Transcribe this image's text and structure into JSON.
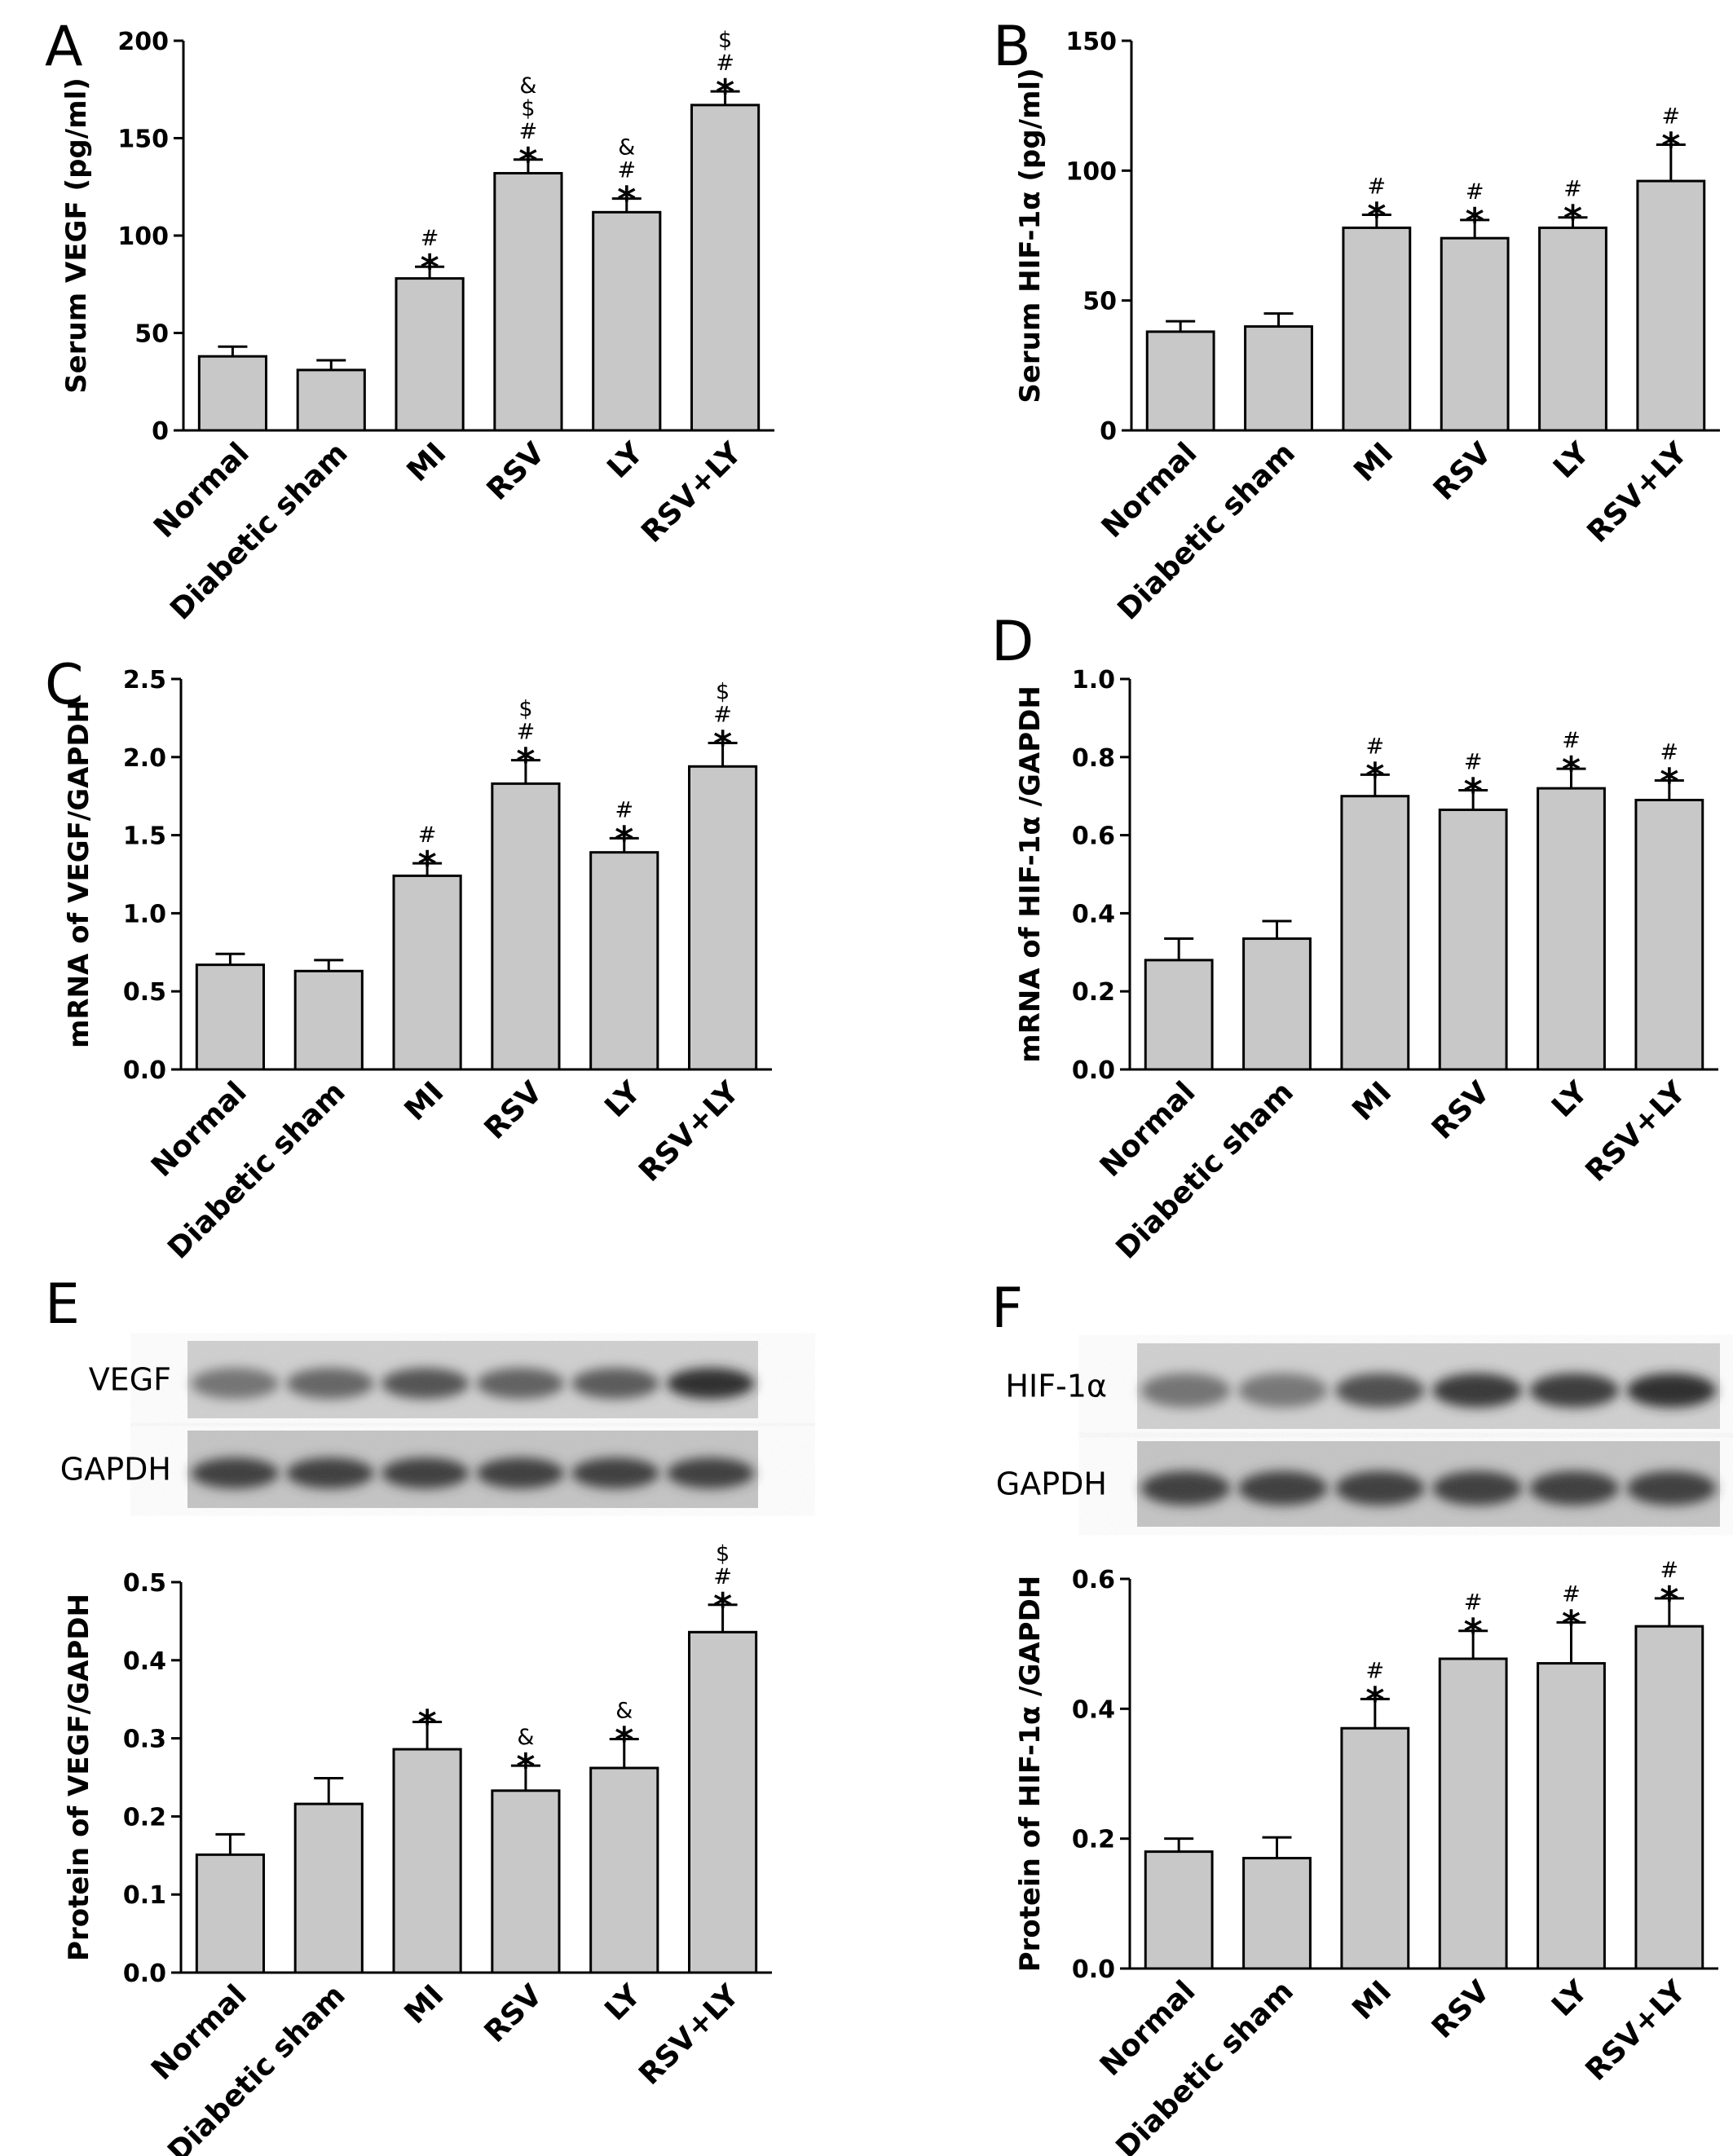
{
  "categories": [
    "Normal",
    "Diabetic sham",
    "MI",
    "RSV",
    "LY",
    "RSV+LY"
  ],
  "chart_data": [
    {
      "panel": "A",
      "type": "bar",
      "ylabel": "Serum VEGF (pg/ml)",
      "ylim": [
        0,
        200
      ],
      "yticks": [
        0,
        50,
        100,
        150,
        200
      ],
      "values": [
        38,
        31,
        78,
        132,
        112,
        167
      ],
      "errors": [
        5,
        5,
        6,
        7,
        7,
        7
      ],
      "sig": [
        [],
        [],
        [
          "#",
          "*"
        ],
        [
          "&",
          "$",
          "#",
          "*"
        ],
        [
          "&",
          "#",
          "*"
        ],
        [
          "$",
          "#",
          "*"
        ]
      ]
    },
    {
      "panel": "B",
      "type": "bar",
      "ylabel": "Serum HIF-1α  (pg/ml)",
      "ylim": [
        0,
        150
      ],
      "yticks": [
        0,
        50,
        100,
        150
      ],
      "values": [
        38,
        40,
        78,
        74,
        78,
        96
      ],
      "errors": [
        4,
        5,
        5,
        7,
        4,
        14
      ],
      "sig": [
        [],
        [],
        [
          "#",
          "*"
        ],
        [
          "#",
          "*"
        ],
        [
          "#",
          "*"
        ],
        [
          "#",
          "*"
        ]
      ]
    },
    {
      "panel": "C",
      "type": "bar",
      "ylabel": "mRNA of VEGF/GAPDH",
      "ylim": [
        0,
        2.5
      ],
      "yticks": [
        "0.0",
        "0.5",
        "1.0",
        "1.5",
        "2.0",
        "2.5"
      ],
      "values": [
        0.67,
        0.63,
        1.24,
        1.83,
        1.39,
        1.94
      ],
      "errors": [
        0.07,
        0.07,
        0.08,
        0.15,
        0.09,
        0.15
      ],
      "sig": [
        [],
        [],
        [
          "#",
          "*"
        ],
        [
          "$",
          "#",
          "*"
        ],
        [
          "#",
          "*"
        ],
        [
          "$",
          "#",
          "*"
        ]
      ]
    },
    {
      "panel": "D",
      "type": "bar",
      "ylabel": "mRNA of HIF-1α /GAPDH",
      "ylim": [
        0,
        1.0
      ],
      "yticks": [
        "0.0",
        "0.2",
        "0.4",
        "0.6",
        "0.8",
        "1.0"
      ],
      "values": [
        0.28,
        0.335,
        0.7,
        0.665,
        0.72,
        0.69
      ],
      "errors": [
        0.055,
        0.045,
        0.055,
        0.05,
        0.05,
        0.05
      ],
      "sig": [
        [],
        [],
        [
          "#",
          "*"
        ],
        [
          "#",
          "*"
        ],
        [
          "#",
          "*"
        ],
        [
          "#",
          "*"
        ]
      ]
    },
    {
      "panel": "E",
      "type": "bar",
      "ylabel": "Protein of VEGF/GAPDH",
      "ylim": [
        0,
        0.5
      ],
      "yticks": [
        "0.0",
        "0.1",
        "0.2",
        "0.3",
        "0.4",
        "0.5"
      ],
      "values": [
        0.151,
        0.216,
        0.286,
        0.233,
        0.262,
        0.436
      ],
      "errors": [
        0.026,
        0.033,
        0.035,
        0.032,
        0.037,
        0.035
      ],
      "sig": [
        [],
        [],
        [
          "*"
        ],
        [
          "&",
          "*"
        ],
        [
          "&",
          "*"
        ],
        [
          "$",
          "#",
          "*"
        ]
      ],
      "blots": [
        "VEGF",
        "GAPDH"
      ]
    },
    {
      "panel": "F",
      "type": "bar",
      "ylabel": "Protein of HIF-1α /GAPDH",
      "ylim": [
        0,
        0.6
      ],
      "yticks": [
        "0.0",
        "0.2",
        "0.4",
        "0.6"
      ],
      "values": [
        0.18,
        0.17,
        0.37,
        0.477,
        0.47,
        0.527
      ],
      "errors": [
        0.02,
        0.032,
        0.045,
        0.043,
        0.063,
        0.043
      ],
      "sig": [
        [],
        [],
        [
          "#",
          "*"
        ],
        [
          "#",
          "*"
        ],
        [
          "#",
          "*"
        ],
        [
          "#",
          "*"
        ]
      ],
      "blots": [
        "HIF-1α",
        "GAPDH"
      ]
    }
  ]
}
